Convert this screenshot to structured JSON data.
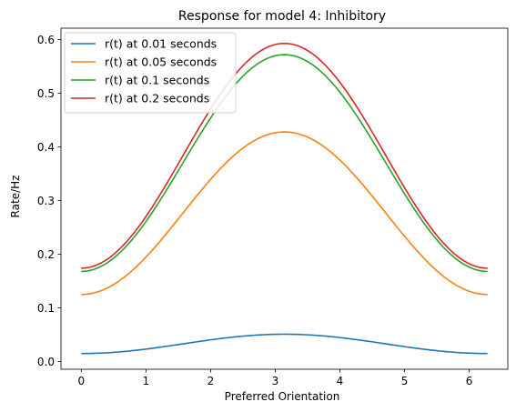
{
  "chart_data": {
    "type": "line",
    "title": "Response for model 4: Inhibitory",
    "xlabel": "Preferred Orientation",
    "ylabel": "Rate/Hz",
    "xlim": [
      -0.3141,
      6.5973
    ],
    "ylim": [
      -0.0143,
      0.6213
    ],
    "xticks": [
      0,
      1,
      2,
      3,
      4,
      5,
      6
    ],
    "yticks": [
      0.0,
      0.1,
      0.2,
      0.3,
      0.4,
      0.5,
      0.6
    ],
    "xtick_labels": [
      "0",
      "1",
      "2",
      "3",
      "4",
      "5",
      "6"
    ],
    "ytick_labels": [
      "0.0",
      "0.1",
      "0.2",
      "0.3",
      "0.4",
      "0.5",
      "0.6"
    ],
    "grid": false,
    "legend_position": "top-left",
    "x_domain": [
      0,
      6.2832
    ],
    "series": [
      {
        "name": "r(t) at 0.01 seconds",
        "color": "#1f77b4",
        "min": 0.015,
        "max": 0.051
      },
      {
        "name": "r(t) at 0.05 seconds",
        "color": "#ff7f0e",
        "min": 0.125,
        "max": 0.428
      },
      {
        "name": "r(t) at 0.1 seconds",
        "color": "#2ca02c",
        "min": 0.168,
        "max": 0.572
      },
      {
        "name": "r(t) at 0.2 seconds",
        "color": "#d62728",
        "min": 0.174,
        "max": 0.593
      }
    ]
  }
}
